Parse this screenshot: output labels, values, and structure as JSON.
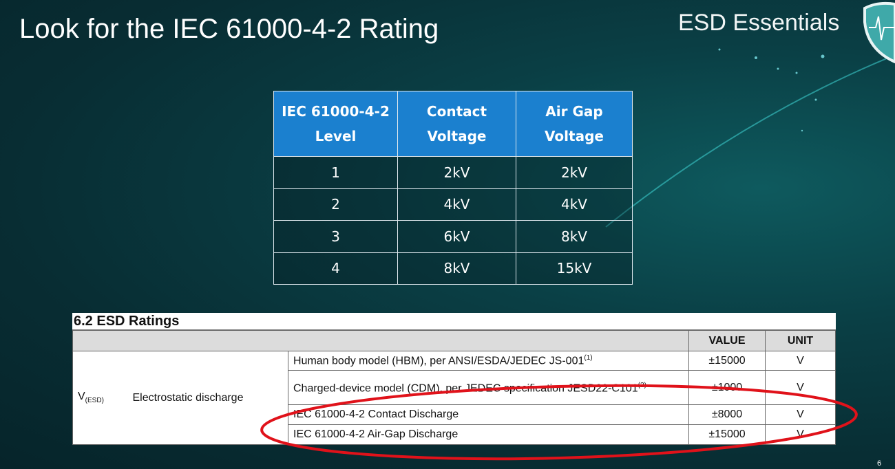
{
  "slide": {
    "title": "Look for the IEC 61000-4-2 Rating",
    "brand": "ESD Essentials",
    "page_number": "6"
  },
  "level_table": {
    "headers": [
      [
        "IEC 61000-4-2",
        "Level"
      ],
      [
        "Contact",
        "Voltage"
      ],
      [
        "Air Gap",
        "Voltage"
      ]
    ],
    "rows": [
      [
        "1",
        "2kV",
        "2kV"
      ],
      [
        "2",
        "4kV",
        "4kV"
      ],
      [
        "3",
        "6kV",
        "8kV"
      ],
      [
        "4",
        "8kV",
        "15kV"
      ]
    ],
    "header_color": "#1b80cf"
  },
  "esd_ratings": {
    "heading": "6.2   ESD Ratings",
    "col_value": "VALUE",
    "col_unit": "UNIT",
    "symbol": "V",
    "symbol_sub": "(ESD)",
    "parameter": "Electrostatic discharge",
    "rows": [
      {
        "desc": "Human body model (HBM), per ANSI/ESDA/JEDEC JS-001",
        "note": "(1)",
        "value": "±15000",
        "unit": "V"
      },
      {
        "desc": "Charged-device model (CDM), per JEDEC specification JESD22-C101",
        "note": "(2)",
        "value": "±1000",
        "unit": "V"
      },
      {
        "desc": "IEC 61000-4-2 Contact Discharge",
        "note": "",
        "value": "±8000",
        "unit": "V"
      },
      {
        "desc": "IEC 61000-4-2 Air-Gap Discharge",
        "note": "",
        "value": "±15000",
        "unit": "V"
      }
    ],
    "highlight_color": "#e0121a"
  }
}
